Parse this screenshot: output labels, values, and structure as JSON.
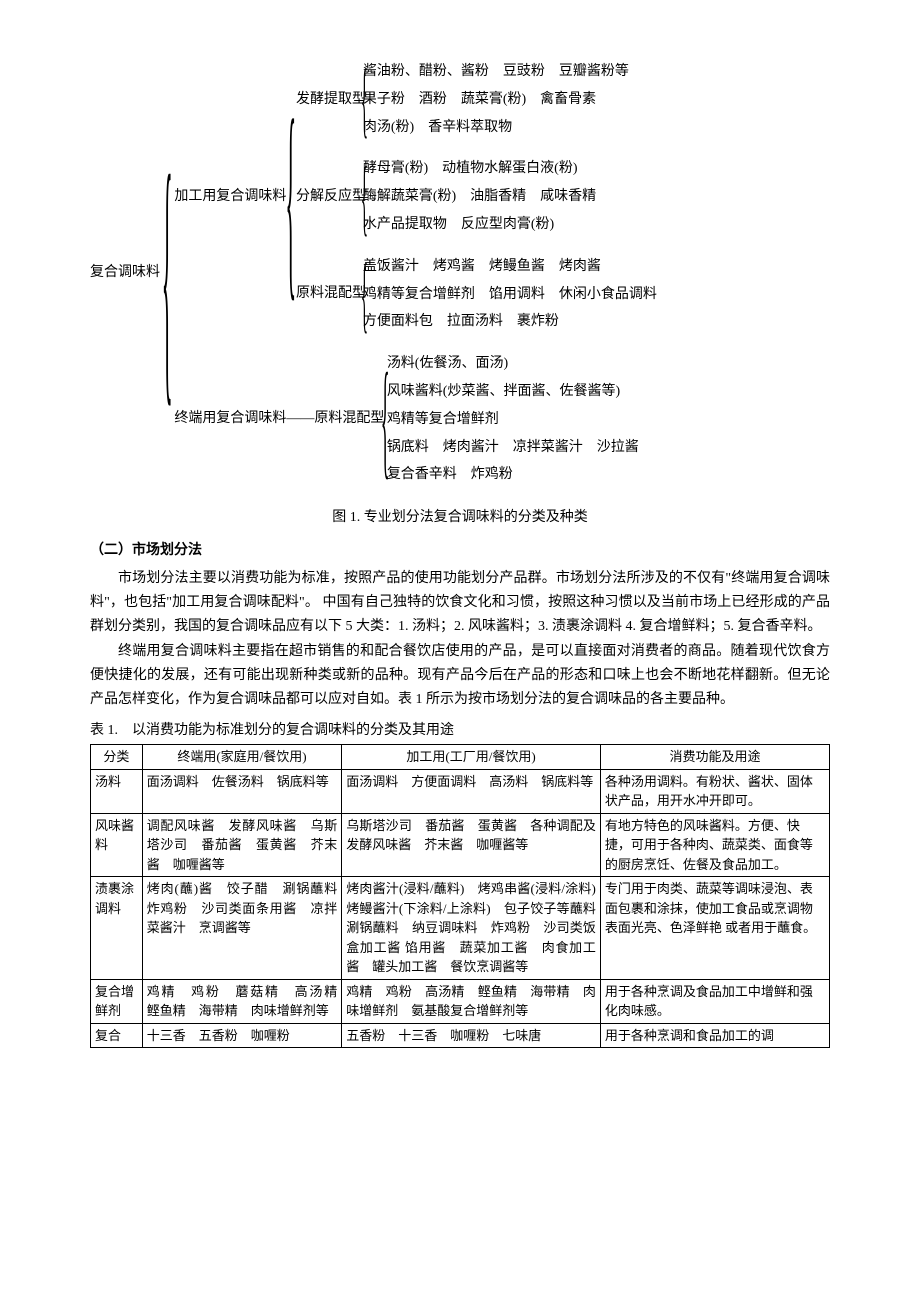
{
  "tree": {
    "root_label": "复合调味料",
    "branch1": {
      "label": "加工用复合调味料",
      "sub1": {
        "label": "发酵提取型",
        "items": [
          "酱油粉、醋粉、酱粉　豆豉粉　豆瓣酱粉等",
          "果子粉　酒粉　蔬菜膏(粉)　禽畜骨素",
          "肉汤(粉)　香辛料萃取物"
        ]
      },
      "sub2": {
        "label": "分解反应型",
        "items": [
          "酵母膏(粉)　动植物水解蛋白液(粉)",
          "酶解蔬菜膏(粉)　油脂香精　咸味香精",
          "水产品提取物　反应型肉膏(粉)"
        ]
      },
      "sub3": {
        "label": "原料混配型",
        "items": [
          "盖饭酱汁　烤鸡酱　烤鳗鱼酱　烤肉酱",
          "鸡精等复合增鲜剂　馅用调料　休闲小食品调料",
          "方便面料包　拉面汤料　裹炸粉"
        ]
      }
    },
    "branch2": {
      "label": "终端用复合调味料——原料混配型",
      "items": [
        "汤料(佐餐汤、面汤)",
        "风味酱料(炒菜酱、拌面酱、佐餐酱等)",
        "鸡精等复合增鲜剂",
        "锅底料　烤肉酱汁　凉拌菜酱汁　沙拉酱",
        "复合香辛料　炸鸡粉"
      ]
    }
  },
  "fig_caption": "图 1.  专业划分法复合调味料的分类及种类",
  "section_title": "（二）市场划分法",
  "para1": "市场划分法主要以消费功能为标准，按照产品的使用功能划分产品群。市场划分法所涉及的不仅有\"终端用复合调味料\"，也包括\"加工用复合调味配料\"。 中国有自己独特的饮食文化和习惯，按照这种习惯以及当前市场上已经形成的产品群划分类别，我国的复合调味品应有以下 5 大类：1. 汤料；2. 风味酱料；3. 渍裹涂调料  4. 复合增鲜料；5. 复合香辛料。",
  "para2": "终端用复合调味料主要指在超市销售的和配合餐饮店使用的产品，是可以直接面对消费者的商品。随着现代饮食方便快捷化的发展，还有可能出现新种类或新的品种。现有产品今后在产品的形态和口味上也会不断地花样翻新。但无论产品怎样变化，作为复合调味品都可以应对自如。表 1 所示为按市场划分法的复合调味品的各主要品种。",
  "table_caption": "表 1.　以消费功能为标准划分的复合调味料的分类及其用途",
  "table": {
    "header": [
      "分类",
      "终端用(家庭用/餐饮用)",
      "加工用(工厂用/餐饮用)",
      "消费功能及用途"
    ],
    "rows": [
      {
        "c1": "汤料",
        "c2": "面汤调料　佐餐汤料　锅底料等",
        "c3": "面汤调料　方便面调料　高汤料　锅底料等",
        "c4": "各种汤用调料。有粉状、酱状、固体状产品，用开水冲开即可。"
      },
      {
        "c1": "风味酱料",
        "c2": "调配风味酱　发酵风味酱　乌斯塔沙司　番茄酱　蛋黄酱　芥末酱　咖喱酱等",
        "c3": "乌斯塔沙司　番茄酱　蛋黄酱　各种调配及发酵风味酱　芥末酱　咖喱酱等",
        "c4": "有地方特色的风味酱料。方便、快捷，可用于各种肉、蔬菜类、面食等的厨房烹饪、佐餐及食品加工。"
      },
      {
        "c1": "渍裹涂调料",
        "c2": "烤肉(蘸)酱　饺子醋　涮锅蘸料　炸鸡粉　沙司类面条用酱　凉拌菜酱汁　烹调酱等",
        "c3": "烤肉酱汁(浸料/蘸料)　烤鸡串酱(浸料/涂料)　烤鳗酱汁(下涂料/上涂料)　包子饺子等蘸料　涮锅蘸料　纳豆调味料　炸鸡粉　沙司类饭盒加工酱  馅用酱　蔬菜加工酱　肉食加工酱　罐头加工酱　餐饮烹调酱等",
        "c4": "专门用于肉类、蔬菜等调味浸泡、表面包裹和涂抹，使加工食品或烹调物表面光亮、色泽鲜艳 或者用于蘸食。"
      },
      {
        "c1": "复合增鲜剂",
        "c2": "鸡精　鸡粉　蘑菇精　高汤精　鲣鱼精　海带精　肉味增鲜剂等",
        "c3": "鸡精　鸡粉　高汤精　鲣鱼精　海带精　肉味增鲜剂　氨基酸复合增鲜剂等",
        "c4": "用于各种烹调及食品加工中增鲜和强化肉味感。"
      },
      {
        "c1": "复合",
        "c2": "十三香　五香粉　咖喱粉",
        "c3": "五香粉　十三香　咖喱粉　七味唐",
        "c4": "用于各种烹调和食品加工的调"
      }
    ]
  }
}
